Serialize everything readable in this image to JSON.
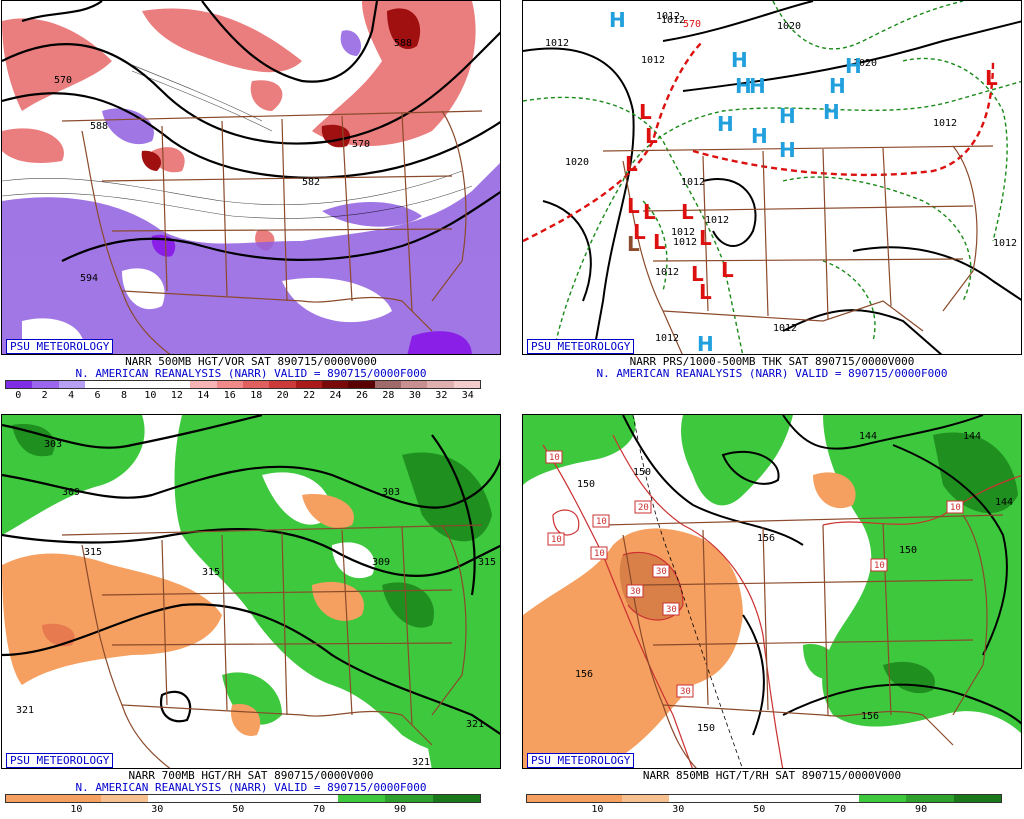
{
  "panels": [
    {
      "badge": "PSU METEOROLOGY",
      "caption1": "NARR 500MB HGT/VOR SAT 890715/0000V000",
      "caption2": "N. AMERICAN REANALYSIS (NARR) VALID = 890715/0000F000",
      "colorbar": {
        "colors": [
          "#7f2ee6",
          "#9a66ee",
          "#b8a0f5",
          "#ffffff",
          "#ffffff",
          "#ffffff",
          "#ffffff",
          "#f7b4b4",
          "#f08a8a",
          "#e06060",
          "#cc3a3a",
          "#aa1a1a",
          "#7a0a0a",
          "#5a0000",
          "#a06a6a",
          "#c89090",
          "#e0b0b0",
          "#f5cccc"
        ],
        "ticks": [
          "0",
          "2",
          "4",
          "6",
          "8",
          "10",
          "12",
          "14",
          "16",
          "18",
          "20",
          "22",
          "24",
          "26",
          "28",
          "30",
          "32",
          "34"
        ]
      },
      "labels": [
        "570",
        "588",
        "570",
        "582",
        "594",
        "588"
      ]
    },
    {
      "badge": "PSU METEOROLOGY",
      "caption1": "NARR PRS/1000-500MB THK SAT 890715/0000V000",
      "caption2": "N. AMERICAN REANALYSIS (NARR) VALID = 890715/0000F000",
      "labels": [
        "1012",
        "1012",
        "1012",
        "1020",
        "1020",
        "1020",
        "1012",
        "1012",
        "1012",
        "1012",
        "1012",
        "1012",
        "1012",
        "1012",
        "1012",
        "570",
        "1012"
      ],
      "highs": [
        "H",
        "H",
        "H",
        "H",
        "H",
        "H",
        "H",
        "H",
        "H",
        "H",
        "H",
        "H"
      ],
      "lows": [
        "L",
        "L",
        "L",
        "L",
        "L",
        "L",
        "L",
        "L",
        "L",
        "L",
        "L",
        "L",
        "L",
        "L"
      ]
    },
    {
      "badge": "PSU METEOROLOGY",
      "caption1": "NARR 700MB HGT/RH SAT 890715/0000V000",
      "caption2": "N. AMERICAN REANALYSIS (NARR) VALID = 890715/0000F000",
      "colorbar": {
        "colors": [
          "#f5a060",
          "#f5a060",
          "#f8c090",
          "#ffffff",
          "#ffffff",
          "#ffffff",
          "#ffffff",
          "#3ec83e",
          "#2ea02e",
          "#1a781a"
        ],
        "ticks": [
          "10",
          "30",
          "50",
          "70",
          "90"
        ]
      },
      "labels": [
        "303",
        "309",
        "303",
        "315",
        "315",
        "309",
        "315",
        "321",
        "321",
        "321"
      ]
    },
    {
      "badge": "PSU METEOROLOGY",
      "caption1": "NARR 850MB HGT/T/RH SAT 890715/0000V000",
      "caption2": "",
      "colorbar": {
        "colors": [
          "#f5a060",
          "#f5a060",
          "#f8c090",
          "#ffffff",
          "#ffffff",
          "#ffffff",
          "#ffffff",
          "#3ec83e",
          "#2ea02e",
          "#1a781a"
        ],
        "ticks": [
          "10",
          "30",
          "50",
          "70",
          "90"
        ]
      },
      "labels": [
        "150",
        "150",
        "144",
        "156",
        "150",
        "156",
        "150",
        "156",
        "144",
        "144"
      ],
      "temp_labels": [
        "10",
        "20",
        "10",
        "10",
        "30",
        "30",
        "30",
        "30",
        "10",
        "10",
        "10"
      ]
    }
  ]
}
